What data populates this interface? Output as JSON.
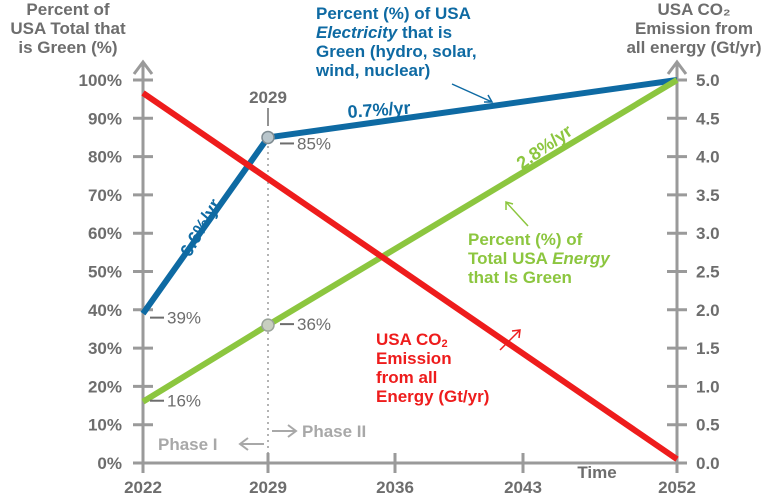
{
  "chart_data": {
    "type": "line",
    "left_axis_title": "Percent of USA Total that is Green (%)",
    "right_axis_title": "USA CO₂ Emission from all energy (Gt/yr)",
    "xlabel": "Time",
    "x_ticks": [
      "2022",
      "2029",
      "2036",
      "2043",
      "2052"
    ],
    "y_left_ticks": [
      "0%",
      "10%",
      "20%",
      "30%",
      "40%",
      "50%",
      "60%",
      "70%",
      "80%",
      "90%",
      "100%"
    ],
    "y_right_ticks": [
      "0.0",
      "0.5",
      "1.0",
      "1.5",
      "2.0",
      "2.5",
      "3.0",
      "3.5",
      "4.0",
      "4.5",
      "5.0"
    ],
    "ylim_left": [
      0,
      100
    ],
    "ylim_right": [
      0,
      5
    ],
    "series": [
      {
        "name": "Percent (%) of USA Electricity that is Green (hydro, solar, wind, nuclear)",
        "axis": "left",
        "color": "#0e6aa3",
        "points": [
          [
            2022,
            39
          ],
          [
            2029,
            85
          ],
          [
            2052,
            100
          ]
        ]
      },
      {
        "name": "Percent (%) of Total USA Energy that Is Green",
        "axis": "left",
        "color": "#8cc63f",
        "points": [
          [
            2022,
            16
          ],
          [
            2029,
            36
          ],
          [
            2052,
            100
          ]
        ]
      },
      {
        "name": "USA CO₂ Emission from all Energy (Gt/yr)",
        "axis": "right",
        "color": "#ee1c1c",
        "points": [
          [
            2022,
            4.83
          ],
          [
            2052,
            0.05
          ]
        ]
      }
    ],
    "annotations": {
      "marker_2029": "2029",
      "blue_rate1": "6.6%/yr",
      "blue_rate2": "0.7%/yr",
      "green_rate": "2.8%/yr",
      "lbl_39": "39%",
      "lbl_85": "85%",
      "lbl_16": "16%",
      "lbl_36": "36%",
      "phase1": "Phase I",
      "phase2": "Phase II"
    },
    "legend_texts": {
      "blue": [
        "Percent (%) of USA",
        "Electricity",
        " that is",
        "Green (hydro, solar,",
        "wind, nuclear)"
      ],
      "green": [
        "Percent (%) of",
        "Total USA ",
        "Energy",
        "that Is Green"
      ],
      "red": [
        "USA CO",
        "2",
        "Emission",
        "from all",
        "Energy (Gt/yr)"
      ]
    }
  }
}
